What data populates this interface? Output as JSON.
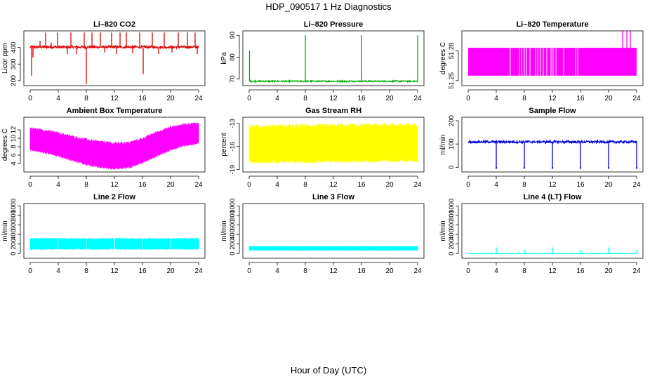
{
  "title": "HDP_090517  1 Hz Diagnostics",
  "xlabel": "Hour of Day (UTC)",
  "x_ticks": [
    0,
    4,
    8,
    12,
    16,
    20,
    24
  ],
  "chart_data": [
    {
      "type": "line",
      "title": "Li–820 CO2",
      "ylabel": "Licor ppm",
      "color": "#e00000",
      "xlim": [
        0,
        24
      ],
      "ylim": [
        170,
        500
      ],
      "y_ticks": [
        200,
        300,
        400
      ],
      "base": 400,
      "band": [
        395,
        410
      ],
      "spikes": [
        {
          "x": 0.2,
          "y": 230
        },
        {
          "x": 0.4,
          "y": 340
        },
        {
          "x": 1.4,
          "y": 440
        },
        {
          "x": 2.2,
          "y": 490
        },
        {
          "x": 3.0,
          "y": 430
        },
        {
          "x": 3.9,
          "y": 490
        },
        {
          "x": 5.3,
          "y": 360
        },
        {
          "x": 5.8,
          "y": 490
        },
        {
          "x": 6.6,
          "y": 360
        },
        {
          "x": 7.7,
          "y": 490
        },
        {
          "x": 8.0,
          "y": 180
        },
        {
          "x": 8.8,
          "y": 490
        },
        {
          "x": 10.0,
          "y": 490
        },
        {
          "x": 10.6,
          "y": 370
        },
        {
          "x": 11.6,
          "y": 490
        },
        {
          "x": 12.3,
          "y": 360
        },
        {
          "x": 12.8,
          "y": 490
        },
        {
          "x": 13.7,
          "y": 490
        },
        {
          "x": 14.6,
          "y": 365
        },
        {
          "x": 15.6,
          "y": 490
        },
        {
          "x": 16.1,
          "y": 240
        },
        {
          "x": 17.4,
          "y": 490
        },
        {
          "x": 18.3,
          "y": 360
        },
        {
          "x": 19.1,
          "y": 490
        },
        {
          "x": 20.2,
          "y": 370
        },
        {
          "x": 21.1,
          "y": 490
        },
        {
          "x": 22.4,
          "y": 490
        },
        {
          "x": 23.5,
          "y": 490
        },
        {
          "x": 23.8,
          "y": 360
        }
      ]
    },
    {
      "type": "line",
      "title": "Li–820 Pressure",
      "ylabel": "kPa",
      "color": "#00b000",
      "xlim": [
        0,
        24
      ],
      "ylim": [
        67,
        92
      ],
      "y_ticks": [
        70,
        80,
        90
      ],
      "base": 69,
      "band": [
        68.7,
        69.3
      ],
      "spikes": [
        {
          "x": 0.05,
          "y": 83
        },
        {
          "x": 8.0,
          "y": 90
        },
        {
          "x": 16.0,
          "y": 90
        },
        {
          "x": 24.0,
          "y": 90
        }
      ]
    },
    {
      "type": "area",
      "title": "Li–820 Temperature",
      "ylabel": "degrees C",
      "color": "#ff00ff",
      "xlim": [
        0,
        24
      ],
      "ylim": [
        51.245,
        51.3
      ],
      "y_ticks": [
        51.25,
        51.28
      ],
      "band": [
        51.255,
        51.283
      ],
      "gaps": [
        6.0,
        7.3,
        7.6,
        8.0,
        8.3,
        8.8,
        9.6,
        9.9,
        10.3,
        10.7,
        11.2,
        11.8,
        12.1,
        12.5,
        13.6,
        15.3,
        15.6
      ],
      "spikes": [
        {
          "x": 22.0,
          "y": 51.3
        },
        {
          "x": 22.6,
          "y": 51.3
        },
        {
          "x": 23.1,
          "y": 51.3
        }
      ]
    },
    {
      "type": "area",
      "title": "Ambient Box Temperature",
      "ylabel": "degrees C",
      "color": "#ff00ff",
      "xlim": [
        0,
        24
      ],
      "ylim": [
        2,
        15
      ],
      "y_ticks": [
        4,
        6,
        8,
        10,
        12
      ],
      "upper": [
        [
          0,
          12.3
        ],
        [
          3,
          11.5
        ],
        [
          6,
          10.3
        ],
        [
          9,
          9.2
        ],
        [
          12,
          8.7
        ],
        [
          14,
          8.8
        ],
        [
          16,
          9.8
        ],
        [
          18,
          11.3
        ],
        [
          20,
          12.5
        ],
        [
          22,
          13.2
        ],
        [
          24,
          13.5
        ]
      ],
      "lower": [
        [
          0,
          7.5
        ],
        [
          3,
          6.5
        ],
        [
          6,
          5.0
        ],
        [
          9,
          3.6
        ],
        [
          12,
          3.0
        ],
        [
          14,
          3.3
        ],
        [
          16,
          4.5
        ],
        [
          18,
          6.0
        ],
        [
          20,
          7.5
        ],
        [
          22,
          8.5
        ],
        [
          24,
          9.0
        ]
      ]
    },
    {
      "type": "area",
      "title": "Gas Stream RH",
      "ylabel": "percent",
      "color": "#ffff00",
      "xlim": [
        0,
        24
      ],
      "ylim": [
        -19.3,
        -12.2
      ],
      "y_ticks": [
        -19,
        -16,
        -13
      ],
      "upper": [
        [
          0,
          -13.5
        ],
        [
          24,
          -13.3
        ]
      ],
      "lower": [
        [
          0,
          -17.8
        ],
        [
          24,
          -17.6
        ]
      ]
    },
    {
      "type": "line",
      "title": "Sample Flow",
      "ylabel": "ml/min",
      "color": "#0000dd",
      "xlim": [
        0,
        24
      ],
      "ylim": [
        -20,
        215
      ],
      "y_ticks": [
        0,
        100,
        200
      ],
      "base": 110,
      "band": [
        104,
        114
      ],
      "dips": [
        {
          "x": 4.0,
          "y": -3
        },
        {
          "x": 8.0,
          "y": -3
        },
        {
          "x": 12.0,
          "y": -3
        },
        {
          "x": 16.0,
          "y": -3
        },
        {
          "x": 20.0,
          "y": -3
        },
        {
          "x": 24.0,
          "y": -3
        }
      ]
    },
    {
      "type": "area",
      "title": "Line 2 Flow",
      "ylabel": "ml/min",
      "color": "#00ffff",
      "xlim": [
        0,
        24
      ],
      "ylim": [
        -100,
        1050
      ],
      "y_ticks": [
        0,
        200,
        400,
        600,
        800,
        1000
      ],
      "upper": [
        [
          0,
          310
        ],
        [
          24,
          310
        ]
      ],
      "lower": [
        [
          0,
          100
        ],
        [
          24,
          100
        ]
      ],
      "gaps": [
        4.0,
        8.0,
        12.0,
        16.0,
        20.0
      ]
    },
    {
      "type": "area",
      "title": "Line 3 Flow",
      "ylabel": "ml/min",
      "color": "#00ffff",
      "xlim": [
        0,
        24
      ],
      "ylim": [
        -100,
        1050
      ],
      "y_ticks": [
        0,
        200,
        400,
        600,
        800,
        1000
      ],
      "upper": [
        [
          0,
          150
        ],
        [
          24,
          150
        ]
      ],
      "lower": [
        [
          0,
          70
        ],
        [
          24,
          70
        ]
      ]
    },
    {
      "type": "line",
      "title": "Line 4 (LT) Flow",
      "ylabel": "ml/min",
      "color": "#00ffff",
      "xlim": [
        0,
        24
      ],
      "ylim": [
        -100,
        1050
      ],
      "y_ticks": [
        0,
        200,
        400,
        600,
        800,
        1000
      ],
      "base": 0,
      "band": [
        -5,
        5
      ],
      "spikes": [
        {
          "x": 4.0,
          "y": 130
        },
        {
          "x": 8.0,
          "y": 80
        },
        {
          "x": 12.0,
          "y": 130
        },
        {
          "x": 16.0,
          "y": 80
        },
        {
          "x": 20.0,
          "y": 130
        },
        {
          "x": 24.0,
          "y": 80
        }
      ]
    }
  ]
}
